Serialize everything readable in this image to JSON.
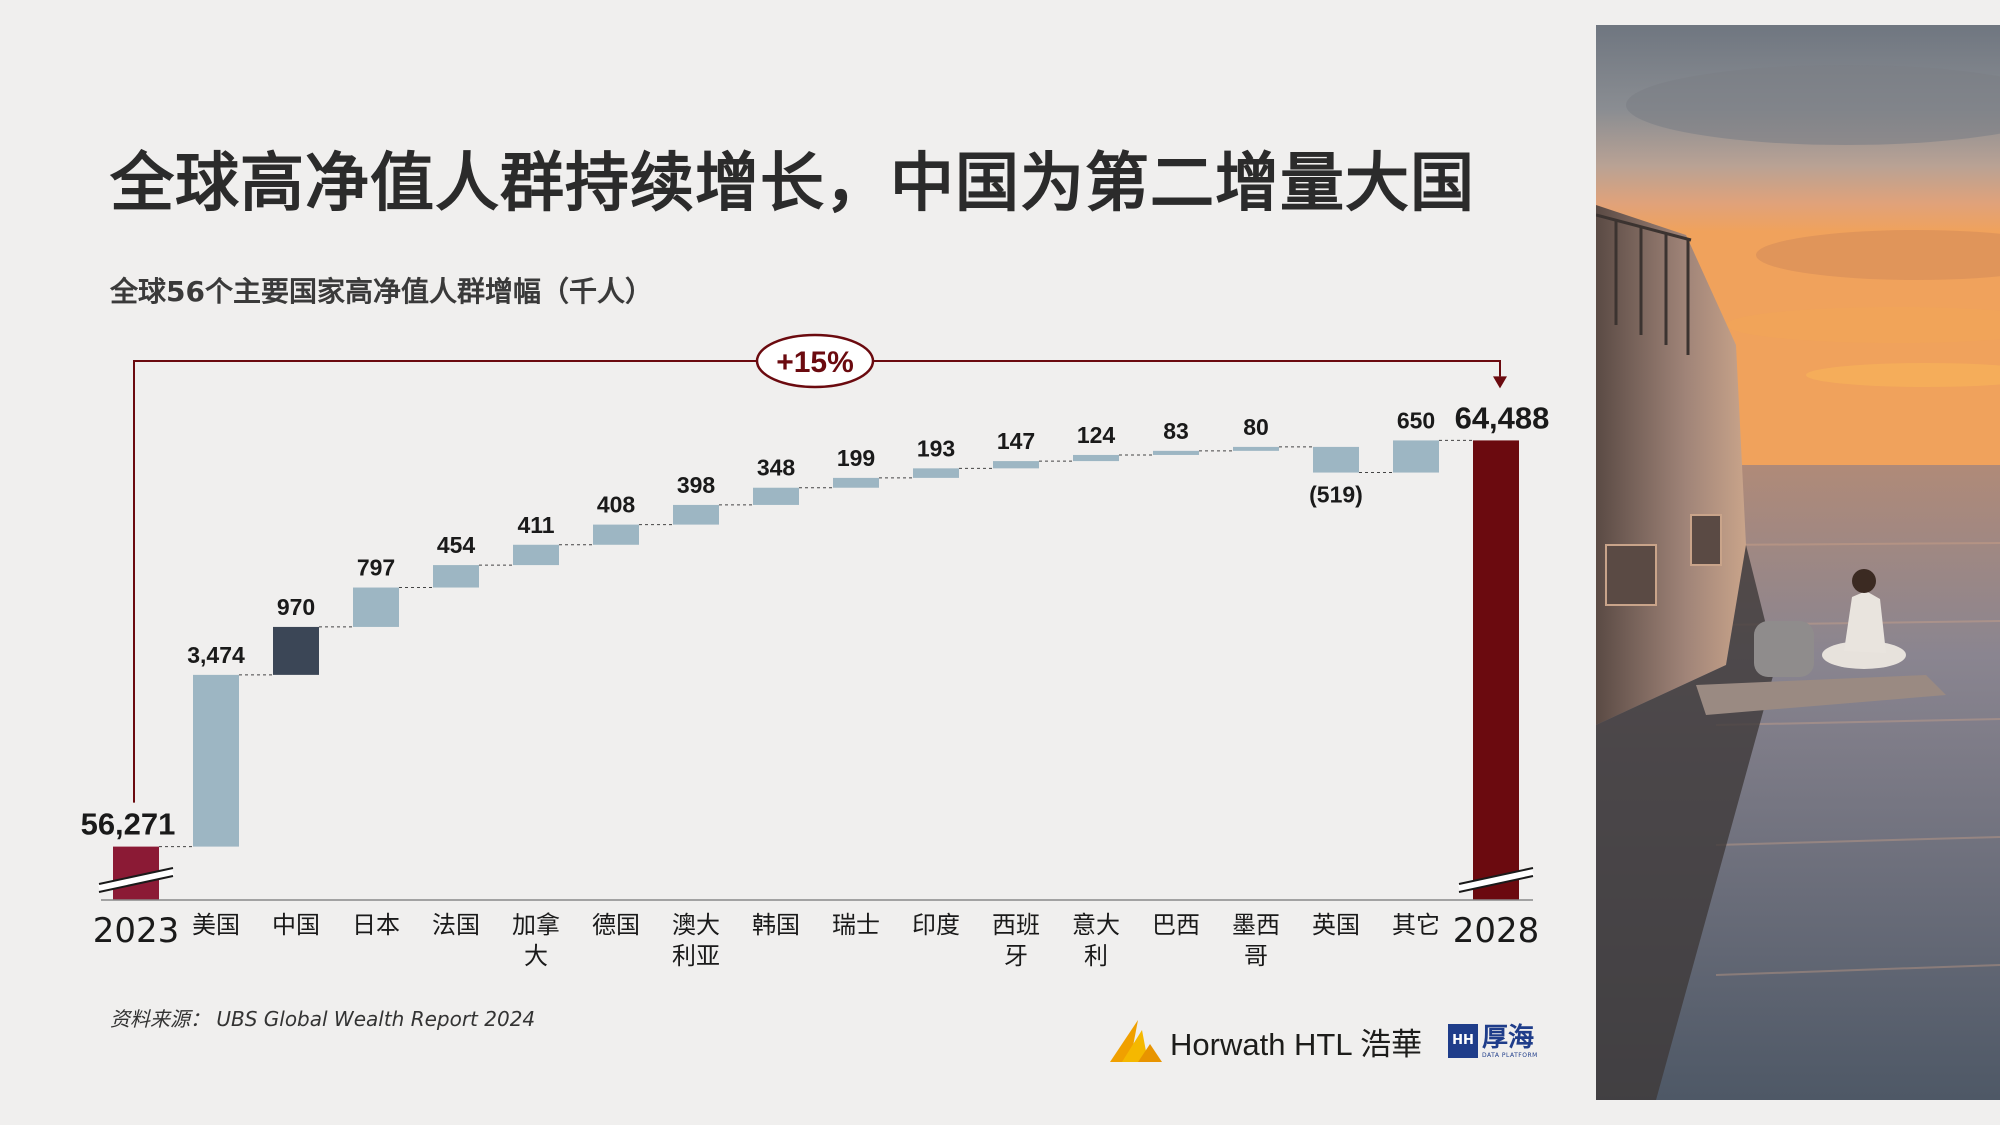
{
  "title": "全球高净值人群持续增长，中国为第二增量大国",
  "subtitle": "全球56个主要国家高净值人群增幅（千人）",
  "growth_label": "+15%",
  "source": "资料来源： UBS Global Wealth Report 2024",
  "logos": {
    "horwath": "Horwath HTL 浩華",
    "houhai_box": "HH",
    "houhai_cn": "厚海",
    "houhai_en": "DATA PLATFORM"
  },
  "colors": {
    "bar_total_start": "#8b1a35",
    "bar_total_end": "#6b0a0f",
    "bar_change": "#9db6c3",
    "bar_china": "#3b4656",
    "annotation": "#6b0a0f"
  },
  "chart_data": {
    "type": "bar",
    "subtype": "waterfall",
    "categories": [
      "2023",
      "美国",
      "中国",
      "日本",
      "法国",
      "加拿大",
      "德国",
      "澳大利亚",
      "韩国",
      "瑞士",
      "印度",
      "西班牙",
      "意大利",
      "巴西",
      "墨西哥",
      "英国",
      "其它",
      "2028"
    ],
    "category_lines": [
      [
        "2023"
      ],
      [
        "美国"
      ],
      [
        "中国"
      ],
      [
        "日本"
      ],
      [
        "法国"
      ],
      [
        "加拿",
        "大"
      ],
      [
        "德国"
      ],
      [
        "澳大",
        "利亚"
      ],
      [
        "韩国"
      ],
      [
        "瑞士"
      ],
      [
        "印度"
      ],
      [
        "西班",
        "牙"
      ],
      [
        "意大",
        "利"
      ],
      [
        "巴西"
      ],
      [
        "墨西",
        "哥"
      ],
      [
        "英国"
      ],
      [
        "其它"
      ],
      [
        "2028"
      ]
    ],
    "values": [
      56271,
      3474,
      970,
      797,
      454,
      411,
      408,
      398,
      348,
      199,
      193,
      147,
      124,
      83,
      80,
      -519,
      650,
      64488
    ],
    "value_labels": [
      "56,271",
      "3,474",
      "970",
      "797",
      "454",
      "411",
      "408",
      "398",
      "348",
      "199",
      "193",
      "147",
      "124",
      "83",
      "80",
      "(519)",
      "650",
      "64,488"
    ],
    "kinds": [
      "total",
      "change",
      "highlight",
      "change",
      "change",
      "change",
      "change",
      "change",
      "change",
      "change",
      "change",
      "change",
      "change",
      "change",
      "change",
      "change",
      "change",
      "total"
    ],
    "ylim": [
      56000,
      64800
    ],
    "axis_break": true,
    "annotation": "+15%"
  }
}
